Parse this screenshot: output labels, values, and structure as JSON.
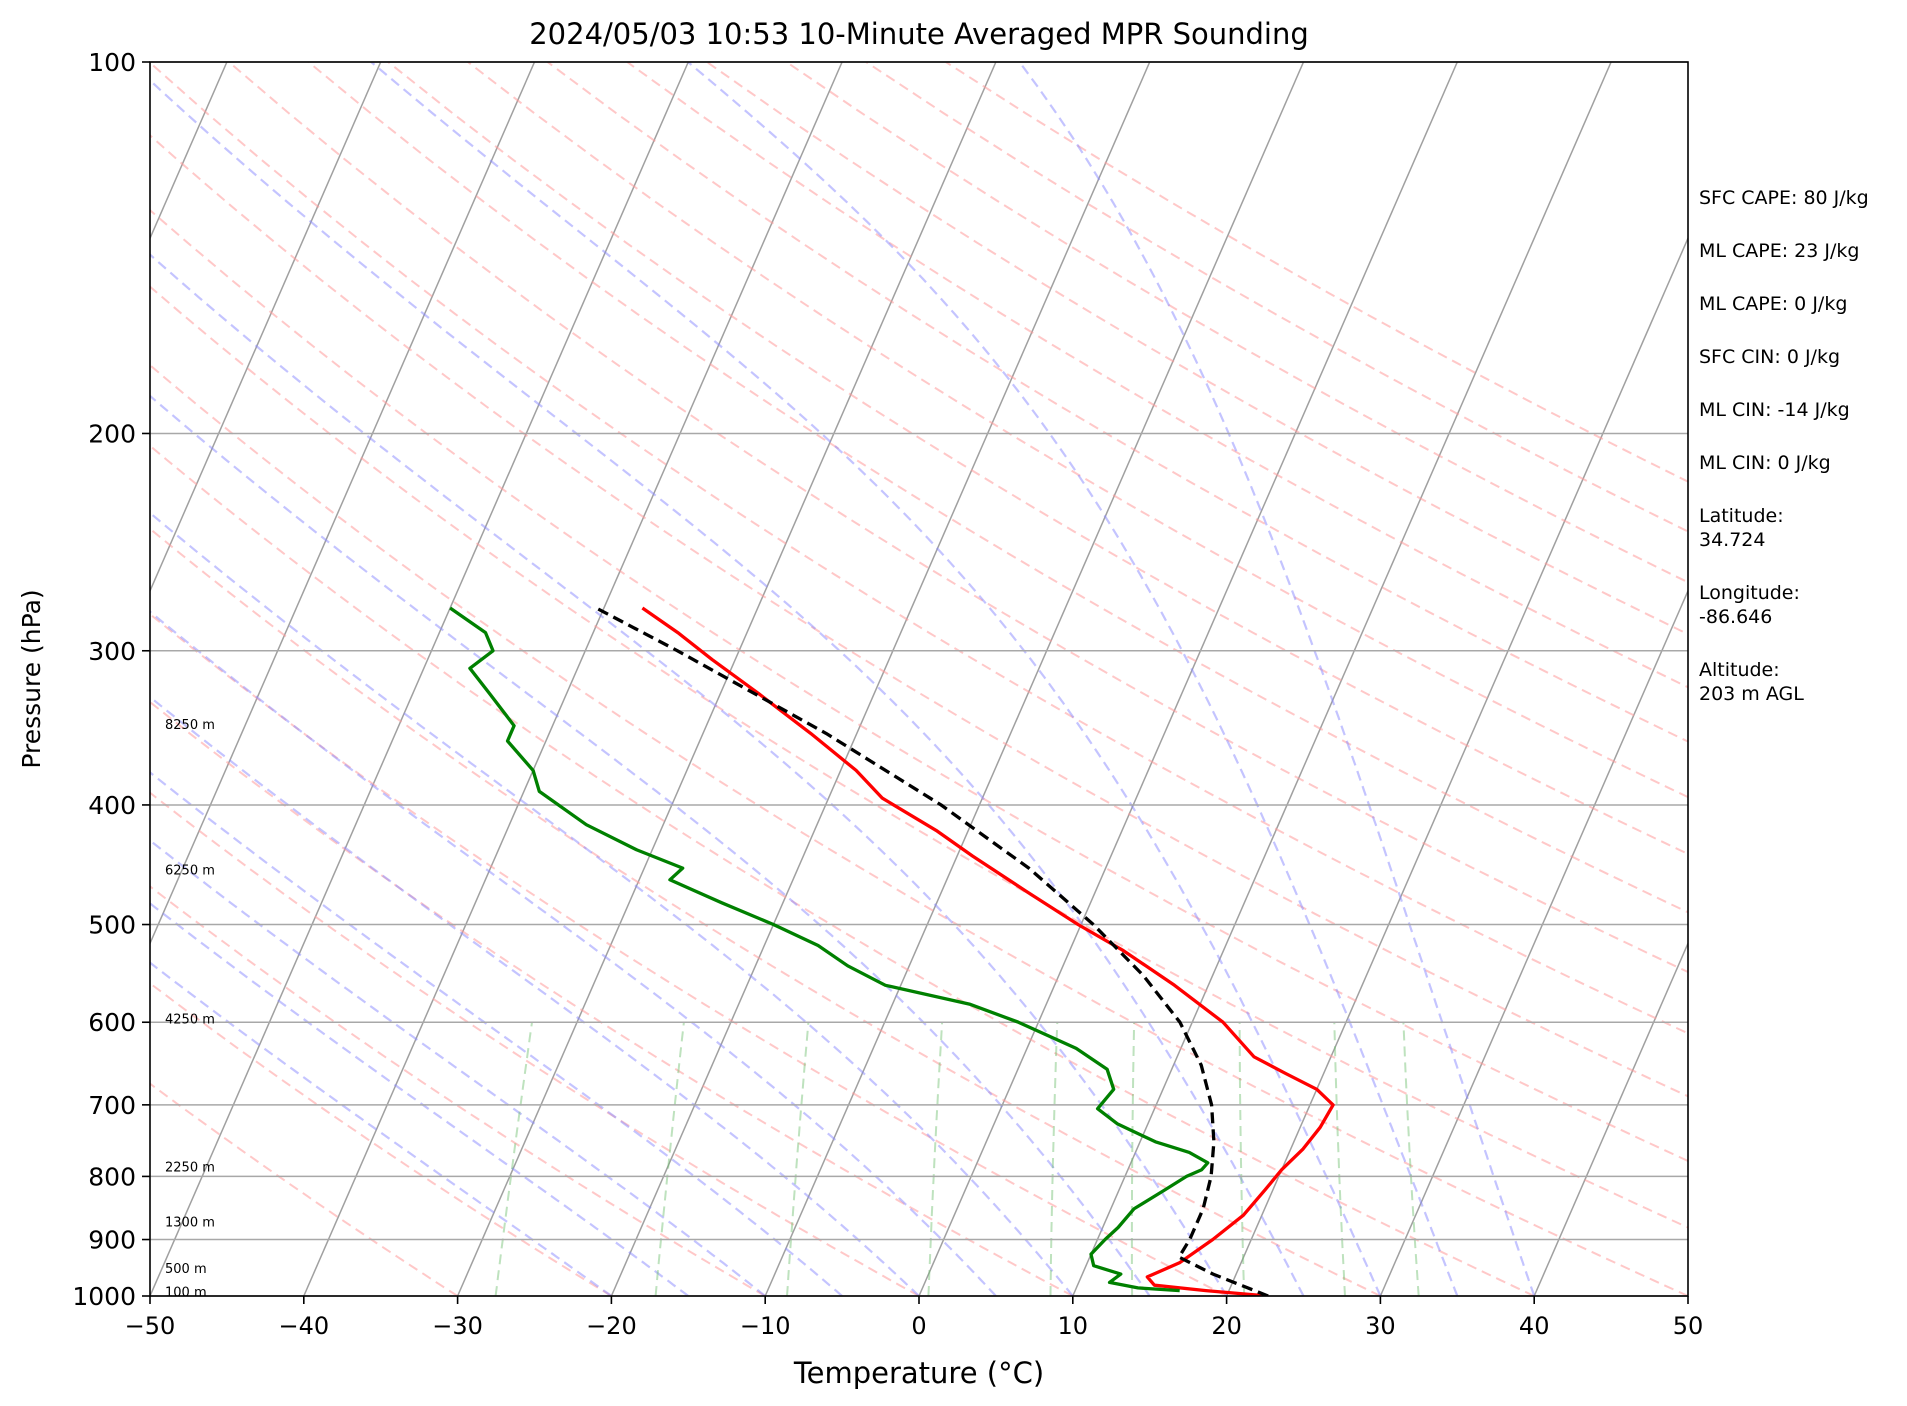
{
  "chart_data": {
    "type": "line",
    "title": "2024/05/03 10:53 10-Minute Averaged MPR Sounding",
    "xlabel": "Temperature (°C)",
    "ylabel": "Pressure (hPa)",
    "xlim": [
      -50,
      50
    ],
    "ylim": [
      1000,
      100
    ],
    "y_scale": "log",
    "grid": true,
    "x_ticks": [
      "−50",
      "−40",
      "−30",
      "−20",
      "−10",
      "0",
      "10",
      "20",
      "30",
      "40",
      "50"
    ],
    "x_tick_values": [
      -50,
      -40,
      -30,
      -20,
      -10,
      0,
      10,
      20,
      30,
      40,
      50
    ],
    "y_ticks": [
      "100",
      "200",
      "300",
      "400",
      "500",
      "600",
      "700",
      "800",
      "900",
      "1000"
    ],
    "y_tick_values": [
      100,
      200,
      300,
      400,
      500,
      600,
      700,
      800,
      900,
      1000
    ],
    "height_labels": [
      {
        "text": "8250 m",
        "p": 344
      },
      {
        "text": "6250 m",
        "p": 451
      },
      {
        "text": "4250 m",
        "p": 596
      },
      {
        "text": "2250 m",
        "p": 785
      },
      {
        "text": "1300 m",
        "p": 870
      },
      {
        "text": "500 m",
        "p": 949
      },
      {
        "text": "100 m",
        "p": 992
      }
    ],
    "series": [
      {
        "color": "#ff0000",
        "style": "solid",
        "points": [
          [
            1000,
            22.7
          ],
          [
            990,
            18.5
          ],
          [
            980,
            15.0
          ],
          [
            965,
            14.3
          ],
          [
            940,
            16.0
          ],
          [
            900,
            17.5
          ],
          [
            860,
            18.8
          ],
          [
            820,
            19.5
          ],
          [
            790,
            20.0
          ],
          [
            760,
            20.8
          ],
          [
            730,
            21.3
          ],
          [
            700,
            21.5
          ],
          [
            680,
            20.0
          ],
          [
            660,
            17.5
          ],
          [
            640,
            15.0
          ],
          [
            600,
            12.0
          ],
          [
            560,
            7.8
          ],
          [
            525,
            3.5
          ],
          [
            500,
            -0.2
          ],
          [
            470,
            -4.5
          ],
          [
            440,
            -9.0
          ],
          [
            420,
            -12.0
          ],
          [
            395,
            -16.5
          ],
          [
            375,
            -19.0
          ],
          [
            350,
            -23.0
          ],
          [
            325,
            -27.5
          ],
          [
            305,
            -31.5
          ],
          [
            290,
            -34.5
          ],
          [
            277,
            -37.5
          ]
        ]
      },
      {
        "color": "#008000",
        "style": "solid",
        "points": [
          [
            990,
            16.8
          ],
          [
            985,
            14.0
          ],
          [
            975,
            12.0
          ],
          [
            960,
            12.5
          ],
          [
            945,
            10.5
          ],
          [
            925,
            10.0
          ],
          [
            900,
            10.5
          ],
          [
            880,
            11.0
          ],
          [
            850,
            11.5
          ],
          [
            820,
            13.0
          ],
          [
            800,
            14.0
          ],
          [
            790,
            14.8
          ],
          [
            780,
            15.0
          ],
          [
            765,
            13.5
          ],
          [
            750,
            11.0
          ],
          [
            725,
            8.0
          ],
          [
            705,
            6.3
          ],
          [
            680,
            6.8
          ],
          [
            655,
            5.8
          ],
          [
            630,
            3.2
          ],
          [
            600,
            -1.3
          ],
          [
            580,
            -5.0
          ],
          [
            560,
            -11.0
          ],
          [
            540,
            -14.0
          ],
          [
            520,
            -16.5
          ],
          [
            500,
            -20.0
          ],
          [
            480,
            -24.0
          ],
          [
            460,
            -28.0
          ],
          [
            450,
            -27.5
          ],
          [
            435,
            -31.0
          ],
          [
            415,
            -35.0
          ],
          [
            390,
            -39.0
          ],
          [
            375,
            -40.0
          ],
          [
            355,
            -42.5
          ],
          [
            345,
            -42.5
          ],
          [
            325,
            -45.0
          ],
          [
            310,
            -47.0
          ],
          [
            300,
            -46.0
          ],
          [
            290,
            -47.0
          ],
          [
            277,
            -50.0
          ]
        ]
      },
      {
        "color": "#000000",
        "style": "dashed",
        "points": [
          [
            1000,
            22.7
          ],
          [
            960,
            18.5
          ],
          [
            930,
            15.8
          ],
          [
            900,
            16.0
          ],
          [
            850,
            16.0
          ],
          [
            800,
            15.6
          ],
          [
            750,
            14.8
          ],
          [
            700,
            13.6
          ],
          [
            650,
            11.8
          ],
          [
            600,
            9.2
          ],
          [
            550,
            5.5
          ],
          [
            500,
            0.8
          ],
          [
            450,
            -5.0
          ],
          [
            400,
            -12.5
          ],
          [
            350,
            -22.0
          ],
          [
            300,
            -34.0
          ],
          [
            277,
            -40.5
          ]
        ]
      }
    ]
  },
  "stats": [
    "SFC CAPE: 80 J/kg",
    "ML CAPE: 23 J/kg",
    "ML CAPE: 0 J/kg",
    "SFC CIN: 0 J/kg",
    "ML CIN: -14 J/kg",
    "ML CIN: 0 J/kg",
    "Latitude:\n34.724",
    "Longitude:\n-86.646",
    "Altitude:\n203 m AGL"
  ]
}
